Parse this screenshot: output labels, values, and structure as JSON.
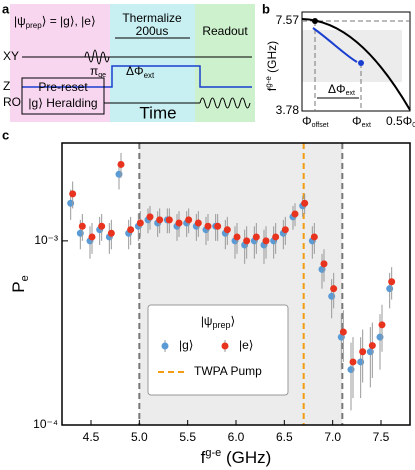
{
  "panel_a": {
    "label": "a",
    "state_pre": "|ψ",
    "state_sub": "prep",
    "state_post": "⟩ = |g⟩, |e⟩",
    "thermalize": "Thermalize",
    "duration": "200us",
    "readout": "Readout",
    "pulse": "π",
    "pulse_sub": "ge",
    "channels": [
      "XY",
      "Z",
      "RO"
    ],
    "preset": "Pre-reset",
    "heralding": "|g⟩ Heralding",
    "flux": "ΔΦ",
    "flux_sub": "ext",
    "time": "Time"
  },
  "panel_b": {
    "label": "b",
    "top": "7.57",
    "bottom": "3.78",
    "ylabel": "f",
    "ylabel_sup": "g-e",
    "ylabel_unit": " (GHz)",
    "offset": "Φ",
    "offset_sub": "offset",
    "ext": "Φ",
    "ext_sub": "ext",
    "end": "0.5Φ",
    "end_sub": "0",
    "delta": "ΔΦ",
    "delta_sub": "ext"
  },
  "chart_data": {
    "type": "scatter",
    "label": "c",
    "xlabel": "f",
    "xlabel_sup": "g-e",
    "xlabel_unit": " (GHz)",
    "ylabel": "P",
    "ylabel_sub": "e",
    "legend_title": "|ψ",
    "legend_title_sub": "prep",
    "legend_title_end": "⟩",
    "xlim": [
      4.2,
      7.8
    ],
    "xticks": [
      4.5,
      5.0,
      5.5,
      6.0,
      6.5,
      7.0,
      7.5
    ],
    "xtick_labels": [
      "4.5",
      "5.0",
      "5.5",
      "6.0",
      "6.5",
      "7.0",
      "7.5"
    ],
    "ylim": [
      0.0001,
      0.0034
    ],
    "log_y": true,
    "yticks": [
      {
        "value": 0.0001,
        "label": "10⁻⁴"
      },
      {
        "value": 0.001,
        "label": "10⁻³"
      }
    ],
    "shaded_region": [
      5.0,
      7.1
    ],
    "shade_color": "#ececec",
    "boundary_color": "#777777",
    "pump": {
      "name": "TWPA Pump",
      "x": 6.7,
      "color": "#f39c12"
    },
    "x": [
      4.3,
      4.4,
      4.5,
      4.6,
      4.7,
      4.8,
      4.9,
      5.0,
      5.1,
      5.2,
      5.3,
      5.4,
      5.5,
      5.6,
      5.7,
      5.8,
      5.9,
      6.0,
      6.1,
      6.2,
      6.3,
      6.4,
      6.5,
      6.6,
      6.7,
      6.8,
      6.9,
      7.0,
      7.1,
      7.2,
      7.3,
      7.4,
      7.5,
      7.6
    ],
    "series": [
      {
        "name": "|g⟩",
        "color": "#5b9bd5",
        "values": [
          0.0016,
          0.0011,
          0.001,
          0.00115,
          0.00105,
          0.0023,
          0.0011,
          0.0012,
          0.0013,
          0.00125,
          0.0013,
          0.0012,
          0.00125,
          0.0012,
          0.00115,
          0.0012,
          0.0011,
          0.001,
          0.00095,
          0.001,
          0.00095,
          0.001,
          0.0011,
          0.00135,
          0.00155,
          0.001,
          0.0007,
          0.0005,
          0.0003,
          0.0002,
          0.00022,
          0.00025,
          0.0003,
          0.00055
        ],
        "errors": [
          0.0003,
          0.0002,
          0.0002,
          0.0002,
          0.0002,
          0.0004,
          0.0002,
          0.0002,
          0.0002,
          0.0002,
          0.0002,
          0.0002,
          0.0002,
          0.0002,
          0.0002,
          0.0002,
          0.0002,
          0.0002,
          0.0002,
          0.0002,
          0.0002,
          0.0002,
          0.0002,
          0.0002,
          0.0002,
          0.0002,
          0.00015,
          0.00012,
          0.0001,
          8e-05,
          8e-05,
          9e-05,
          0.0001,
          0.00012
        ]
      },
      {
        "name": "|e⟩",
        "color": "#e8331e",
        "values": [
          0.0018,
          0.0012,
          0.00105,
          0.0012,
          0.0011,
          0.0026,
          0.00115,
          0.00125,
          0.00135,
          0.0013,
          0.0013,
          0.00125,
          0.0013,
          0.00125,
          0.0012,
          0.0012,
          0.00115,
          0.00105,
          0.001,
          0.00105,
          0.001,
          0.00105,
          0.00115,
          0.0014,
          0.0016,
          0.00105,
          0.00075,
          0.00055,
          0.00032,
          0.00022,
          0.00025,
          0.00027,
          0.00035,
          0.0006
        ],
        "errors": [
          0.0003,
          0.0002,
          0.0002,
          0.0002,
          0.0002,
          0.0004,
          0.0002,
          0.0002,
          0.0002,
          0.0002,
          0.0002,
          0.0002,
          0.0002,
          0.0002,
          0.0002,
          0.0002,
          0.0002,
          0.0002,
          0.0002,
          0.0002,
          0.0002,
          0.0002,
          0.0002,
          0.0002,
          0.0002,
          0.0002,
          0.00015,
          0.00012,
          0.0001,
          8e-05,
          8e-05,
          9e-05,
          0.0001,
          0.00012
        ]
      }
    ]
  }
}
